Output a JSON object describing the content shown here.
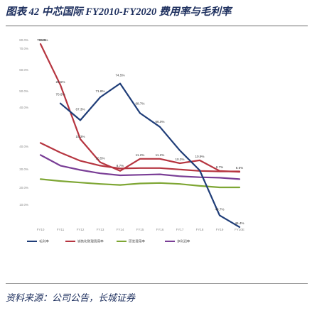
{
  "figure_title": "图表 42 中芯国际 FY2010-FY2020 费用率与毛利率",
  "source": "资料来源：公司公告，长城证券",
  "colors": {
    "title": "#1d2f5e",
    "series": [
      "#1f3d78",
      "#b63540",
      "#7ea634",
      "#7a3e96"
    ]
  },
  "chart_data": [
    {
      "type": "line",
      "x": [
        "FY10",
        "FY11",
        "FY12",
        "FY13",
        "FY14",
        "FY15",
        "FY16",
        "FY17",
        "FY18",
        "FY19",
        "FY20E"
      ],
      "ylim": [
        40,
        85
      ],
      "yticks": [
        "80.0%",
        "70.0%",
        "60.0%",
        "50.0%",
        "40.0%"
      ],
      "grid": false,
      "legend": "none",
      "series": [
        {
          "values": [
            75.5,
            70.6,
            67.3,
            71.8,
            74.5,
            68.7,
            66.0,
            61.4,
            57.5,
            48.7,
            46.4
          ],
          "labels": [
            "75.5%",
            "70.6%",
            "67.3%",
            "71.8%",
            "74.5%",
            "68.7%",
            "66.0%",
            "",
            "",
            "48.7%",
            "46.4%"
          ]
        }
      ]
    },
    {
      "type": "line",
      "x": [
        "FY10",
        "FY11",
        "FY12",
        "FY13",
        "FY14",
        "FY15",
        "FY16",
        "FY17",
        "FY18",
        "FY19",
        "FY20E"
      ],
      "ylim": [
        0,
        40
      ],
      "yticks": [
        "40.0%",
        "30.0%",
        "20.0%",
        "10.0%"
      ],
      "grid": false,
      "legend": "bottom",
      "legend_entries": [
        "毛利率",
        "销售和管理费用率",
        "研发费用率",
        "净利润率"
      ],
      "series": [
        {
          "values": [
            35.0,
            26.5,
            15.3,
            10.5,
            8.7,
            11.2,
            11.2,
            10.3,
            10.9,
            8.7,
            8.5
          ],
          "labels": [
            "35.0%",
            "26.5%",
            "15.3%",
            "10.5%",
            "8.7%",
            "11.2%",
            "11.2%",
            "10.3%",
            "10.9%",
            "8.7%",
            "8.5%"
          ]
        },
        {
          "values": [
            14.5,
            12.5,
            10.8,
            9.8,
            9.2,
            9.3,
            9.3,
            9.0,
            8.7,
            8.6,
            8.6
          ]
        },
        {
          "values": [
            7.0,
            6.6,
            6.3,
            6.0,
            5.8,
            6.1,
            6.2,
            6.0,
            5.6,
            5.3,
            5.3
          ]
        },
        {
          "values": [
            12.0,
            9.8,
            8.9,
            8.2,
            7.8,
            7.9,
            8.0,
            7.6,
            7.4,
            7.3,
            7.0
          ]
        }
      ]
    }
  ]
}
